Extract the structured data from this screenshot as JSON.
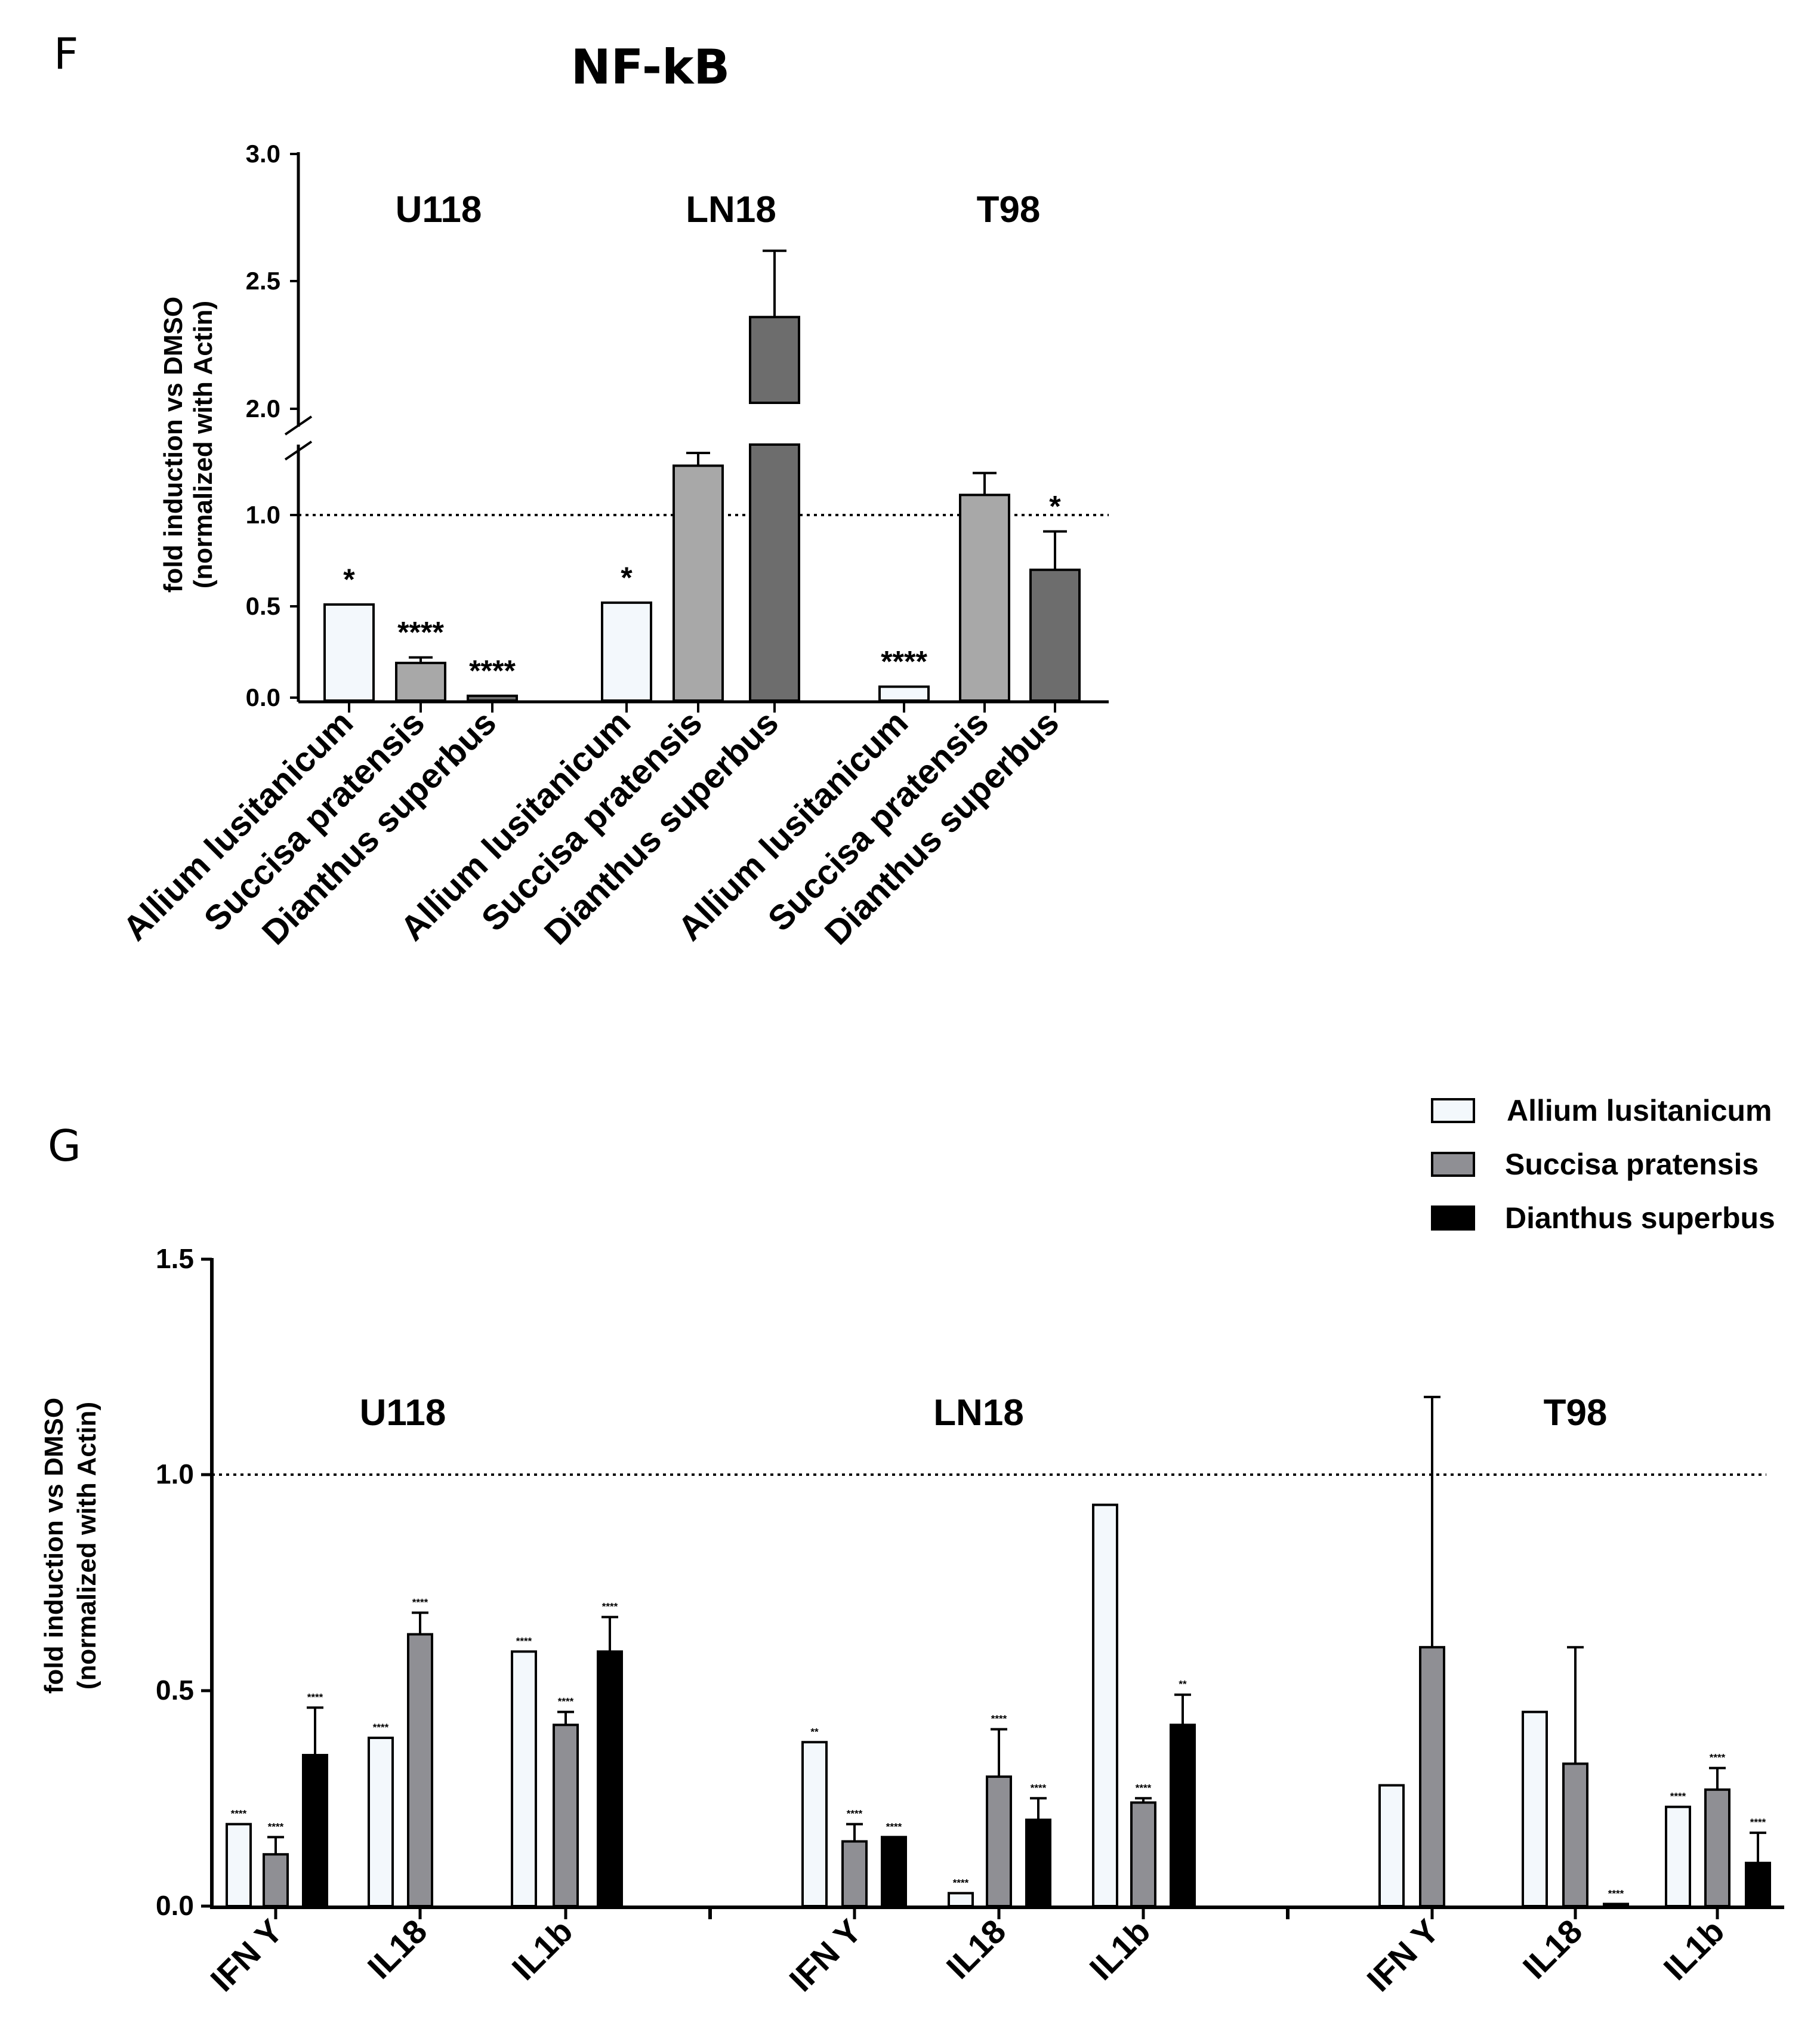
{
  "colors": {
    "allium": "#f3f8fc",
    "succisa_f": "#a8a8a8",
    "dianthus_f": "#6d6d6d",
    "succisa_g": "#8f8f94",
    "dianthus_g": "#000000"
  },
  "chart_data": [
    {
      "panel_letter": "F",
      "type": "bar",
      "title": "NF-kB",
      "ylabel_line1": "fold induction vs DMSO",
      "ylabel_line2": "(normalized with Actin)",
      "yaxis_broken": true,
      "ylim_lower": [
        0,
        1.4
      ],
      "ylim_upper": [
        2.0,
        3.0
      ],
      "yticks_lower": [
        "0.0",
        "0.5",
        "1.0"
      ],
      "yticks_upper": [
        "2.0",
        "2.5",
        "3.0"
      ],
      "reference_line": 1.0,
      "groups": [
        {
          "name": "U118",
          "bars": [
            {
              "category": "Allium lusitanicum",
              "series": "allium",
              "value": 0.51,
              "error": 0,
              "sig": "*"
            },
            {
              "category": "Succisa pratensis",
              "series": "succisa",
              "value": 0.19,
              "error": 0.03,
              "sig": "****"
            },
            {
              "category": "Dianthus superbus",
              "series": "dianthus",
              "value": 0.01,
              "error": 0,
              "sig": "****"
            }
          ]
        },
        {
          "name": "LN18",
          "bars": [
            {
              "category": "Allium lusitanicum",
              "series": "allium",
              "value": 0.52,
              "error": 0,
              "sig": "*"
            },
            {
              "category": "Succisa pratensis",
              "series": "succisa",
              "value": 1.27,
              "error": 0.07,
              "sig": ""
            },
            {
              "category": "Dianthus superbus",
              "series": "dianthus",
              "value": 2.36,
              "error": 0.26,
              "sig": ""
            }
          ]
        },
        {
          "name": "T98",
          "bars": [
            {
              "category": "Allium lusitanicum",
              "series": "allium",
              "value": 0.06,
              "error": 0,
              "sig": "****"
            },
            {
              "category": "Succisa pratensis",
              "series": "succisa",
              "value": 1.11,
              "error": 0.12,
              "sig": ""
            },
            {
              "category": "Dianthus superbus",
              "series": "dianthus",
              "value": 0.7,
              "error": 0.21,
              "sig": "*"
            }
          ]
        }
      ]
    },
    {
      "panel_letter": "G",
      "type": "bar",
      "title": "",
      "ylabel_line1": "fold induction vs DMSO",
      "ylabel_line2": "(normalized with Actin)",
      "ylim": [
        0,
        1.5
      ],
      "yticks": [
        "0.0",
        "0.5",
        "1.0",
        "1.5"
      ],
      "reference_line": 1.0,
      "legend": [
        {
          "series": "allium",
          "label": "Allium lusitanicum"
        },
        {
          "series": "succisa",
          "label": "Succisa pratensis"
        },
        {
          "series": "dianthus",
          "label": "Dianthus superbus"
        }
      ],
      "groups": [
        {
          "name": "U118",
          "categories": [
            {
              "name": "IFN Y",
              "values": [
                0.19,
                0.12,
                0.35
              ],
              "errors": [
                0,
                0.04,
                0.11
              ],
              "sig": [
                "****",
                "****",
                "****"
              ]
            },
            {
              "name": "IL18",
              "values": [
                0.39,
                0.63,
                null
              ],
              "errors": [
                0,
                0.05,
                0
              ],
              "sig": [
                "****",
                "****",
                ""
              ]
            },
            {
              "name": "IL1b",
              "values": [
                0.59,
                0.42,
                0.59
              ],
              "errors": [
                0,
                0.03,
                0.08
              ],
              "sig": [
                "****",
                "****",
                "****"
              ]
            }
          ]
        },
        {
          "name": "LN18",
          "categories": [
            {
              "name": "IFN Y",
              "values": [
                0.38,
                0.15,
                0.16
              ],
              "errors": [
                0,
                0.04,
                0
              ],
              "sig": [
                "**",
                "****",
                "****"
              ]
            },
            {
              "name": "IL18",
              "values": [
                0.03,
                0.3,
                0.2
              ],
              "errors": [
                0,
                0.11,
                0.05
              ],
              "sig": [
                "****",
                "****",
                "****"
              ]
            },
            {
              "name": "IL1b",
              "values": [
                0.93,
                0.24,
                0.42
              ],
              "errors": [
                0,
                0.01,
                0.07
              ],
              "sig": [
                "",
                "****",
                "**"
              ]
            }
          ]
        },
        {
          "name": "T98",
          "categories": [
            {
              "name": "IFN Y",
              "values": [
                0.28,
                0.6,
                null
              ],
              "errors": [
                0,
                0.58,
                0
              ],
              "sig": [
                "",
                "",
                ""
              ]
            },
            {
              "name": "IL18",
              "values": [
                0.45,
                0.33,
                0.005
              ],
              "errors": [
                0,
                0.27,
                0
              ],
              "sig": [
                "",
                "",
                "****"
              ]
            },
            {
              "name": "IL1b",
              "values": [
                0.23,
                0.27,
                0.1
              ],
              "errors": [
                0,
                0.05,
                0.07
              ],
              "sig": [
                "****",
                "****",
                "****"
              ]
            }
          ]
        }
      ]
    }
  ]
}
